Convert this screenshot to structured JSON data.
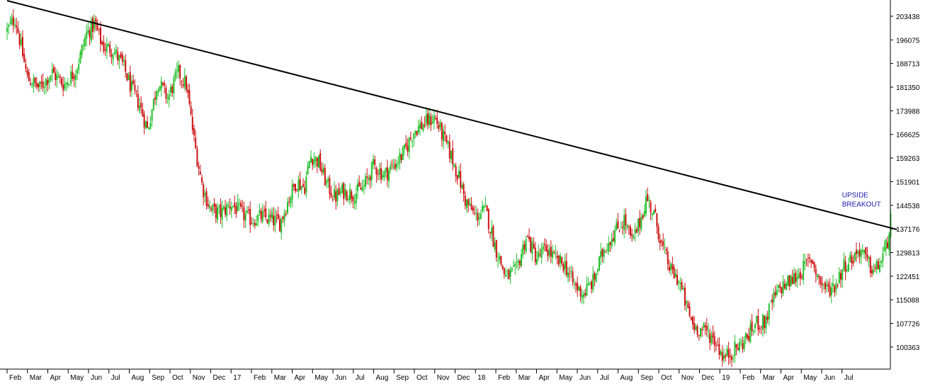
{
  "chart_data": {
    "type": "candlestick",
    "title": "",
    "xlabel": "",
    "ylabel": "",
    "ylim": [
      93500,
      208500
    ],
    "grid": false,
    "legend": "none",
    "y_ticks": [
      100363,
      107726,
      115088,
      122451,
      129813,
      137176,
      144538,
      151901,
      159263,
      166625,
      173988,
      181350,
      188713,
      196075,
      203438
    ],
    "x_ticks": [
      "Feb",
      "Mar",
      "Apr",
      "May",
      "Jun",
      "Jul",
      "Aug",
      "Sep",
      "Oct",
      "Nov",
      "Dec",
      "17",
      "Feb",
      "Mar",
      "Apr",
      "May",
      "Jun",
      "Jul",
      "Aug",
      "Sep",
      "Oct",
      "Nov",
      "Dec",
      "18",
      "Feb",
      "Mar",
      "Apr",
      "May",
      "Jun",
      "Jul",
      "Aug",
      "Sep",
      "Oct",
      "Nov",
      "Dec",
      "19",
      "Feb",
      "Mar",
      "Apr",
      "May",
      "Jun",
      "Jul"
    ],
    "close_path": [
      [
        0,
        199000
      ],
      [
        0.4,
        203000
      ],
      [
        1.0,
        184000
      ],
      [
        1.6,
        181000
      ],
      [
        2.2,
        186000
      ],
      [
        2.8,
        182000
      ],
      [
        3.4,
        187000
      ],
      [
        3.9,
        198000
      ],
      [
        4.3,
        201000
      ],
      [
        4.7,
        194000
      ],
      [
        5.2,
        193000
      ],
      [
        5.7,
        188000
      ],
      [
        6.1,
        181000
      ],
      [
        6.5,
        176000
      ],
      [
        6.9,
        168000
      ],
      [
        7.4,
        183000
      ],
      [
        7.9,
        178000
      ],
      [
        8.4,
        186000
      ],
      [
        8.8,
        182000
      ],
      [
        9.2,
        164000
      ],
      [
        9.6,
        150000
      ],
      [
        10.0,
        143000
      ],
      [
        10.5,
        142000
      ],
      [
        11.0,
        145000
      ],
      [
        11.5,
        142000
      ],
      [
        12.0,
        140000
      ],
      [
        12.5,
        141000
      ],
      [
        13.0,
        140000
      ],
      [
        13.4,
        139000
      ],
      [
        13.8,
        146000
      ],
      [
        14.2,
        152000
      ],
      [
        14.6,
        150000
      ],
      [
        14.9,
        160000
      ],
      [
        15.3,
        158000
      ],
      [
        15.7,
        151000
      ],
      [
        16.1,
        147000
      ],
      [
        16.5,
        149000
      ],
      [
        17.0,
        148000
      ],
      [
        17.5,
        150000
      ],
      [
        18.0,
        157000
      ],
      [
        18.5,
        154000
      ],
      [
        19.0,
        157000
      ],
      [
        19.5,
        161000
      ],
      [
        20.0,
        168000
      ],
      [
        20.5,
        170000
      ],
      [
        21.0,
        172000
      ],
      [
        21.4,
        166000
      ],
      [
        21.8,
        160000
      ],
      [
        22.2,
        153000
      ],
      [
        22.5,
        146000
      ],
      [
        23.0,
        141000
      ],
      [
        23.5,
        143000
      ],
      [
        24.0,
        131000
      ],
      [
        24.5,
        122000
      ],
      [
        25.0,
        124000
      ],
      [
        25.5,
        135000
      ],
      [
        26.0,
        128000
      ],
      [
        26.5,
        131000
      ],
      [
        27.0,
        127000
      ],
      [
        27.4,
        126000
      ],
      [
        27.8,
        120000
      ],
      [
        28.3,
        117000
      ],
      [
        28.8,
        121000
      ],
      [
        29.3,
        131000
      ],
      [
        29.8,
        136000
      ],
      [
        30.3,
        140000
      ],
      [
        30.7,
        133000
      ],
      [
        31.1,
        140000
      ],
      [
        31.4,
        147000
      ],
      [
        31.8,
        141000
      ],
      [
        32.2,
        131000
      ],
      [
        32.6,
        124000
      ],
      [
        33.0,
        121000
      ],
      [
        33.4,
        112000
      ],
      [
        33.7,
        107000
      ],
      [
        34.0,
        106000
      ],
      [
        34.4,
        105000
      ],
      [
        34.8,
        102000
      ],
      [
        35.2,
        97000
      ],
      [
        35.6,
        99000
      ],
      [
        36.0,
        101000
      ],
      [
        36.4,
        104000
      ],
      [
        36.8,
        108000
      ],
      [
        37.2,
        108000
      ],
      [
        37.6,
        115000
      ],
      [
        38.0,
        119000
      ],
      [
        38.5,
        121000
      ],
      [
        39.0,
        124000
      ],
      [
        39.5,
        128000
      ],
      [
        39.9,
        121000
      ],
      [
        40.3,
        118000
      ],
      [
        40.7,
        120000
      ],
      [
        41.1,
        126000
      ],
      [
        41.5,
        128000
      ],
      [
        41.9,
        131000
      ],
      [
        42.3,
        126000
      ],
      [
        42.6,
        124000
      ],
      [
        42.9,
        127000
      ],
      [
        43.2,
        132000
      ],
      [
        43.4,
        141000
      ]
    ],
    "trendline": {
      "start": [
        0,
        208300
      ],
      "end": [
        43.7,
        137000
      ]
    },
    "annotations": [
      {
        "lines": [
          "UPSIDE",
          "BREAKOUT"
        ],
        "x": 41.0,
        "y": 147000
      }
    ],
    "colors": {
      "up": "#22c02a",
      "down": "#cc1111",
      "trendline": "#000000",
      "axis": "#000000",
      "annotation": "#1a1aaa"
    }
  }
}
